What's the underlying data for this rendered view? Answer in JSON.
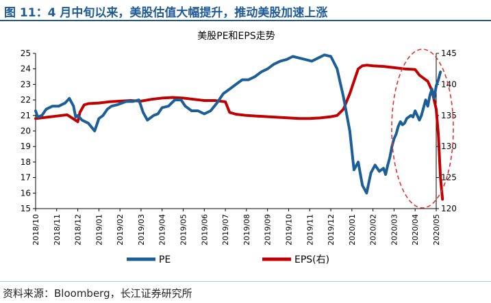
{
  "figure_title": "图 11：4 月中旬以来，美股估值大幅提升，推动美股加速上涨",
  "source": "资料来源：Bloomberg，长江证券研究所",
  "colors": {
    "pe": "#1c5f96",
    "eps": "#c00000",
    "title": "#1f5a96",
    "ellipse": "#e53030"
  },
  "chart_data": {
    "type": "line",
    "title": "美股PE和EPS走势",
    "categories": [
      "2018/10",
      "2018/11",
      "2018/12",
      "2019/01",
      "2019/02",
      "2019/03",
      "2019/04",
      "2019/05",
      "2019/06",
      "2019/07",
      "2019/08",
      "2019/09",
      "2019/10",
      "2019/11",
      "2019/12",
      "2020/01",
      "2020/02",
      "2020/03",
      "2020/04",
      "2020/05"
    ],
    "left_axis": {
      "min": 15,
      "max": 25,
      "ticks": [
        "15",
        "16",
        "17",
        "18",
        "19",
        "20",
        "21",
        "22",
        "23",
        "24",
        "25"
      ]
    },
    "right_axis": {
      "min": 120,
      "max": 145,
      "ticks": [
        "120",
        "125",
        "130",
        "135",
        "140",
        "145"
      ]
    },
    "legend_position": "bottom",
    "grid": false,
    "series": [
      {
        "name": "PE",
        "axis": "left",
        "x": [
          0,
          0.1,
          0.3,
          0.5,
          0.8,
          1.1,
          1.4,
          1.6,
          1.8,
          1.9,
          2.0,
          2.2,
          2.5,
          2.8,
          3.0,
          3.2,
          3.4,
          3.6,
          3.9,
          4.1,
          4.3,
          4.6,
          4.9,
          5.1,
          5.3,
          5.6,
          5.8,
          6.0,
          6.3,
          6.6,
          6.9,
          7.1,
          7.4,
          7.7,
          8.0,
          8.3,
          8.6,
          8.9,
          9.2,
          9.5,
          9.8,
          10.1,
          10.4,
          10.7,
          11.0,
          11.3,
          11.6,
          11.9,
          12.2,
          12.5,
          12.8,
          13.1,
          13.4,
          13.7,
          14.0,
          14.3,
          14.6,
          14.9,
          15.1,
          15.3,
          15.5,
          15.7,
          15.9,
          16.1,
          16.3,
          16.5,
          16.6,
          16.7,
          16.8,
          16.9,
          17.0,
          17.1,
          17.2,
          17.3,
          17.4,
          17.5,
          17.6,
          17.8,
          17.9,
          18.0,
          18.1,
          18.2,
          18.3,
          18.4,
          18.5,
          18.6,
          18.7,
          18.8,
          18.9,
          19.0,
          19.1,
          19.2
        ],
        "values": [
          21.3,
          20.9,
          21.0,
          21.4,
          21.6,
          21.6,
          21.8,
          22.1,
          21.6,
          20.9,
          21.0,
          20.7,
          20.5,
          20.0,
          20.8,
          21.0,
          21.4,
          21.6,
          21.7,
          21.8,
          21.9,
          21.9,
          22.0,
          21.2,
          20.7,
          21.0,
          21.1,
          21.5,
          21.6,
          22.0,
          22.0,
          21.6,
          21.3,
          21.3,
          21.1,
          21.3,
          21.8,
          22.4,
          22.7,
          23.0,
          23.3,
          23.3,
          23.5,
          23.8,
          24.0,
          24.3,
          24.5,
          24.6,
          24.8,
          24.7,
          24.6,
          24.5,
          24.7,
          24.9,
          24.8,
          24.0,
          22.2,
          20.0,
          17.5,
          18.0,
          16.5,
          16.0,
          17.3,
          17.8,
          17.4,
          17.6,
          17.2,
          17.8,
          18.3,
          19.0,
          19.5,
          19.8,
          20.3,
          20.6,
          20.4,
          20.5,
          20.8,
          21.0,
          20.9,
          21.3,
          21.0,
          20.7,
          21.0,
          21.5,
          22.0,
          21.6,
          22.3,
          22.7,
          22.1,
          22.9,
          23.3,
          23.8
        ]
      },
      {
        "name": "EPS(右)",
        "axis": "right",
        "x": [
          0,
          0.5,
          1.0,
          1.5,
          2.0,
          2.1,
          2.3,
          2.5,
          3.0,
          3.5,
          4.0,
          4.5,
          5.0,
          5.5,
          6.0,
          6.5,
          7.0,
          7.5,
          8.0,
          8.5,
          9.0,
          9.2,
          9.5,
          10.0,
          10.5,
          11.0,
          11.5,
          12.0,
          12.5,
          13.0,
          13.5,
          14.0,
          14.3,
          14.6,
          14.9,
          15.1,
          15.3,
          15.5,
          15.7,
          16.0,
          16.5,
          17.0,
          17.5,
          18.0,
          18.2,
          18.4,
          18.6,
          18.8,
          19.0,
          19.1,
          19.2,
          19.3
        ],
        "values": [
          134.5,
          134.7,
          134.9,
          135.1,
          134.0,
          135.5,
          136.7,
          136.9,
          137.0,
          137.2,
          137.3,
          137.4,
          137.3,
          137.6,
          137.8,
          137.9,
          137.8,
          137.6,
          137.4,
          137.4,
          137.2,
          135.5,
          135.2,
          135.0,
          134.9,
          134.8,
          134.7,
          134.6,
          134.5,
          134.5,
          134.6,
          134.8,
          135.0,
          136.0,
          138.5,
          140.5,
          142.5,
          143.0,
          143.1,
          143.0,
          142.9,
          142.7,
          142.5,
          142.4,
          141.5,
          141.0,
          140.5,
          139.0,
          136.0,
          132.0,
          125.0,
          121.5
        ]
      }
    ]
  }
}
